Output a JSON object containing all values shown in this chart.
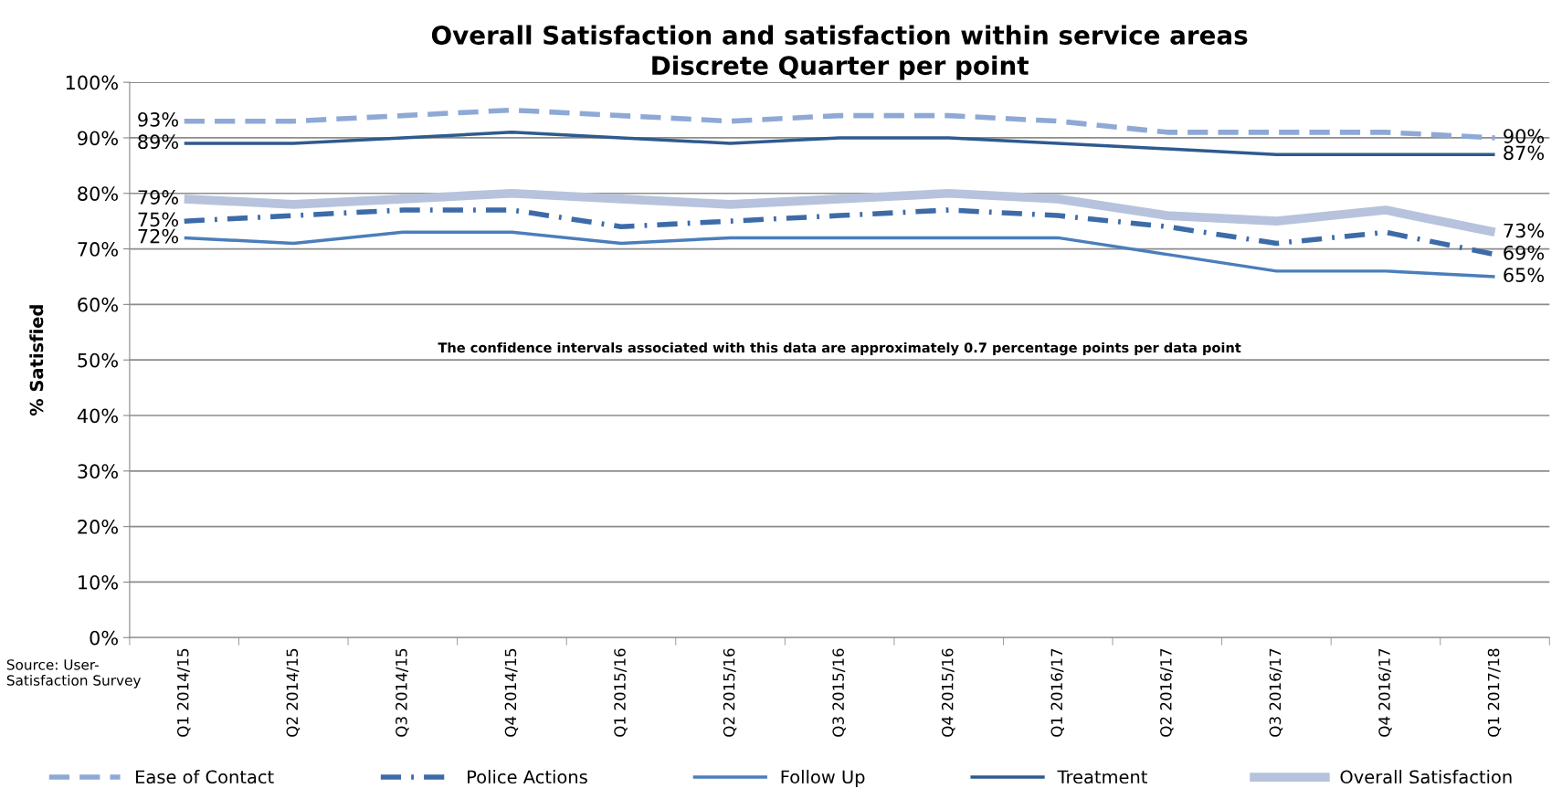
{
  "chart_data": {
    "type": "line",
    "title": "Overall Satisfaction and satisfaction within service areas\nDiscrete Quarter per point",
    "ylabel": "% Satisfied",
    "categories": [
      "Q1 2014/15",
      "Q2 2014/15",
      "Q3 2014/15",
      "Q4 2014/15",
      "Q1 2015/16",
      "Q2 2015/16",
      "Q3 2015/16",
      "Q4 2015/16",
      "Q1 2016/17",
      "Q2 2016/17",
      "Q3 2016/17",
      "Q4 2016/17",
      "Q1 2017/18"
    ],
    "series": [
      {
        "name": "Ease of Contact",
        "color": "#8fa9d6",
        "line_style": "dashed",
        "values": [
          93,
          93,
          94,
          95,
          94,
          93,
          94,
          94,
          93,
          91,
          91,
          91,
          90
        ],
        "value_labels": [
          "93%",
          null,
          null,
          null,
          null,
          null,
          null,
          null,
          null,
          null,
          null,
          null,
          "90%"
        ]
      },
      {
        "name": "Police Actions",
        "color": "#3d6ba8",
        "line_style": "dashdot",
        "values": [
          75,
          76,
          77,
          77,
          74,
          75,
          76,
          77,
          76,
          74,
          71,
          73,
          69
        ],
        "value_labels": [
          "75%",
          null,
          null,
          null,
          null,
          null,
          null,
          null,
          null,
          null,
          null,
          null,
          "69%"
        ]
      },
      {
        "name": "Follow Up",
        "color": "#4a7ebb",
        "line_style": "solid",
        "values": [
          72,
          71,
          73,
          73,
          71,
          72,
          72,
          72,
          72,
          69,
          66,
          66,
          65
        ],
        "value_labels": [
          "72%",
          null,
          null,
          null,
          null,
          null,
          null,
          null,
          null,
          null,
          null,
          null,
          "65%"
        ]
      },
      {
        "name": "Treatment",
        "color": "#2f5a8e",
        "line_style": "solid",
        "values": [
          89,
          89,
          90,
          91,
          90,
          89,
          90,
          90,
          89,
          88,
          87,
          87,
          87
        ],
        "value_labels": [
          "89%",
          null,
          null,
          null,
          null,
          null,
          null,
          null,
          null,
          null,
          null,
          null,
          "87%"
        ]
      },
      {
        "name": "Overall Satisfaction",
        "color": "#b7c3dd",
        "line_style": "solid",
        "values": [
          79,
          78,
          79,
          80,
          79,
          78,
          79,
          80,
          79,
          76,
          75,
          77,
          73
        ],
        "value_labels": [
          "79%",
          null,
          null,
          null,
          null,
          null,
          null,
          null,
          null,
          null,
          null,
          null,
          "73%"
        ]
      }
    ],
    "ylim": [
      0,
      100
    ],
    "yticks": [
      {
        "value": 0,
        "label": "0%"
      },
      {
        "value": 10,
        "label": "10%"
      },
      {
        "value": 20,
        "label": "20%"
      },
      {
        "value": 30,
        "label": "30%"
      },
      {
        "value": 40,
        "label": "40%"
      },
      {
        "value": 50,
        "label": "50%"
      },
      {
        "value": 60,
        "label": "60%"
      },
      {
        "value": 70,
        "label": "70%"
      },
      {
        "value": 80,
        "label": "80%"
      },
      {
        "value": 90,
        "label": "90%"
      },
      {
        "value": 100,
        "label": "100%"
      }
    ],
    "grid": "y",
    "legend": "bottom",
    "marker": "none",
    "annotations": [
      "The confidence intervals associated with this data are approximately 0.7 percentage points per data point",
      "Source: User-\nSatisfaction Survey"
    ]
  }
}
